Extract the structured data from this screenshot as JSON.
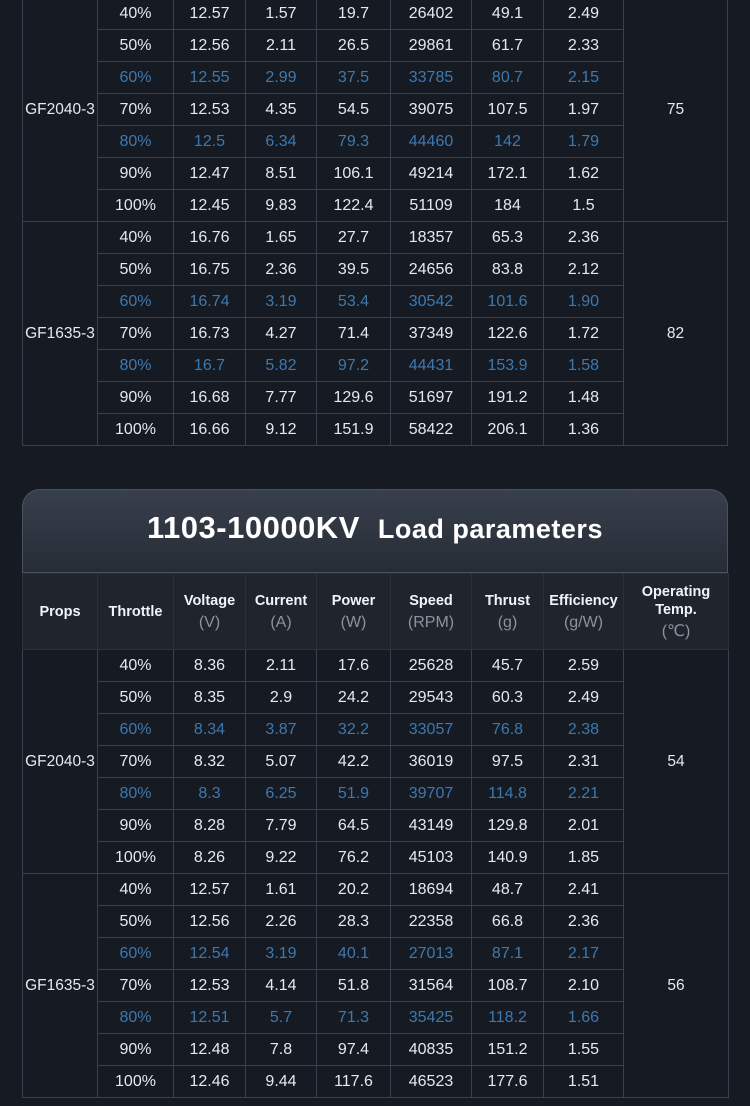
{
  "top_groups": [
    {
      "prop": "GF2040-3",
      "temp": "75",
      "rows": [
        {
          "throttle": "40%",
          "voltage": "12.57",
          "current": "1.57",
          "power": "19.7",
          "speed": "26402",
          "thrust": "49.1",
          "efficiency": "2.49",
          "highlight": false
        },
        {
          "throttle": "50%",
          "voltage": "12.56",
          "current": "2.11",
          "power": "26.5",
          "speed": "29861",
          "thrust": "61.7",
          "efficiency": "2.33",
          "highlight": false
        },
        {
          "throttle": "60%",
          "voltage": "12.55",
          "current": "2.99",
          "power": "37.5",
          "speed": "33785",
          "thrust": "80.7",
          "efficiency": "2.15",
          "highlight": true
        },
        {
          "throttle": "70%",
          "voltage": "12.53",
          "current": "4.35",
          "power": "54.5",
          "speed": "39075",
          "thrust": "107.5",
          "efficiency": "1.97",
          "highlight": false
        },
        {
          "throttle": "80%",
          "voltage": "12.5",
          "current": "6.34",
          "power": "79.3",
          "speed": "44460",
          "thrust": "142",
          "efficiency": "1.79",
          "highlight": true
        },
        {
          "throttle": "90%",
          "voltage": "12.47",
          "current": "8.51",
          "power": "106.1",
          "speed": "49214",
          "thrust": "172.1",
          "efficiency": "1.62",
          "highlight": false
        },
        {
          "throttle": "100%",
          "voltage": "12.45",
          "current": "9.83",
          "power": "122.4",
          "speed": "51109",
          "thrust": "184",
          "efficiency": "1.5",
          "highlight": false
        }
      ]
    },
    {
      "prop": "GF1635-3",
      "temp": "82",
      "rows": [
        {
          "throttle": "40%",
          "voltage": "16.76",
          "current": "1.65",
          "power": "27.7",
          "speed": "18357",
          "thrust": "65.3",
          "efficiency": "2.36",
          "highlight": false
        },
        {
          "throttle": "50%",
          "voltage": "16.75",
          "current": "2.36",
          "power": "39.5",
          "speed": "24656",
          "thrust": "83.8",
          "efficiency": "2.12",
          "highlight": false
        },
        {
          "throttle": "60%",
          "voltage": "16.74",
          "current": "3.19",
          "power": "53.4",
          "speed": "30542",
          "thrust": "101.6",
          "efficiency": "1.90",
          "highlight": true
        },
        {
          "throttle": "70%",
          "voltage": "16.73",
          "current": "4.27",
          "power": "71.4",
          "speed": "37349",
          "thrust": "122.6",
          "efficiency": "1.72",
          "highlight": false
        },
        {
          "throttle": "80%",
          "voltage": "16.7",
          "current": "5.82",
          "power": "97.2",
          "speed": "44431",
          "thrust": "153.9",
          "efficiency": "1.58",
          "highlight": true
        },
        {
          "throttle": "90%",
          "voltage": "16.68",
          "current": "7.77",
          "power": "129.6",
          "speed": "51697",
          "thrust": "191.2",
          "efficiency": "1.48",
          "highlight": false
        },
        {
          "throttle": "100%",
          "voltage": "16.66",
          "current": "9.12",
          "power": "151.9",
          "speed": "58422",
          "thrust": "206.1",
          "efficiency": "1.36",
          "highlight": false
        }
      ]
    }
  ],
  "card": {
    "model": "1103-10000KV",
    "subtitle": "Load parameters"
  },
  "headers": {
    "props": "Props",
    "throttle": "Throttle",
    "voltage": "Voltage",
    "voltage_unit": "(V)",
    "current": "Current",
    "current_unit": "(A)",
    "power": "Power",
    "power_unit": "(W)",
    "speed": "Speed",
    "speed_unit": "(RPM)",
    "thrust": "Thrust",
    "thrust_unit": "(g)",
    "efficiency": "Efficiency",
    "efficiency_unit": "(g/W)",
    "temp_line1": "Operating",
    "temp_line2": "Temp.",
    "temp_unit": "(℃)"
  },
  "bottom_groups": [
    {
      "prop": "GF2040-3",
      "temp": "54",
      "rows": [
        {
          "throttle": "40%",
          "voltage": "8.36",
          "current": "2.11",
          "power": "17.6",
          "speed": "25628",
          "thrust": "45.7",
          "efficiency": "2.59",
          "highlight": false
        },
        {
          "throttle": "50%",
          "voltage": "8.35",
          "current": "2.9",
          "power": "24.2",
          "speed": "29543",
          "thrust": "60.3",
          "efficiency": "2.49",
          "highlight": false
        },
        {
          "throttle": "60%",
          "voltage": "8.34",
          "current": "3.87",
          "power": "32.2",
          "speed": "33057",
          "thrust": "76.8",
          "efficiency": "2.38",
          "highlight": true
        },
        {
          "throttle": "70%",
          "voltage": "8.32",
          "current": "5.07",
          "power": "42.2",
          "speed": "36019",
          "thrust": "97.5",
          "efficiency": "2.31",
          "highlight": false
        },
        {
          "throttle": "80%",
          "voltage": "8.3",
          "current": "6.25",
          "power": "51.9",
          "speed": "39707",
          "thrust": "114.8",
          "efficiency": "2.21",
          "highlight": true
        },
        {
          "throttle": "90%",
          "voltage": "8.28",
          "current": "7.79",
          "power": "64.5",
          "speed": "43149",
          "thrust": "129.8",
          "efficiency": "2.01",
          "highlight": false
        },
        {
          "throttle": "100%",
          "voltage": "8.26",
          "current": "9.22",
          "power": "76.2",
          "speed": "45103",
          "thrust": "140.9",
          "efficiency": "1.85",
          "highlight": false
        }
      ]
    },
    {
      "prop": "GF1635-3",
      "temp": "56",
      "rows": [
        {
          "throttle": "40%",
          "voltage": "12.57",
          "current": "1.61",
          "power": "20.2",
          "speed": "18694",
          "thrust": "48.7",
          "efficiency": "2.41",
          "highlight": false
        },
        {
          "throttle": "50%",
          "voltage": "12.56",
          "current": "2.26",
          "power": "28.3",
          "speed": "22358",
          "thrust": "66.8",
          "efficiency": "2.36",
          "highlight": false
        },
        {
          "throttle": "60%",
          "voltage": "12.54",
          "current": "3.19",
          "power": "40.1",
          "speed": "27013",
          "thrust": "87.1",
          "efficiency": "2.17",
          "highlight": true
        },
        {
          "throttle": "70%",
          "voltage": "12.53",
          "current": "4.14",
          "power": "51.8",
          "speed": "31564",
          "thrust": "108.7",
          "efficiency": "2.10",
          "highlight": false
        },
        {
          "throttle": "80%",
          "voltage": "12.51",
          "current": "5.7",
          "power": "71.3",
          "speed": "35425",
          "thrust": "118.2",
          "efficiency": "1.66",
          "highlight": true
        },
        {
          "throttle": "90%",
          "voltage": "12.48",
          "current": "7.8",
          "power": "97.4",
          "speed": "40835",
          "thrust": "151.2",
          "efficiency": "1.55",
          "highlight": false
        },
        {
          "throttle": "100%",
          "voltage": "12.46",
          "current": "9.44",
          "power": "117.6",
          "speed": "46523",
          "thrust": "177.6",
          "efficiency": "1.51",
          "highlight": false
        }
      ]
    }
  ]
}
